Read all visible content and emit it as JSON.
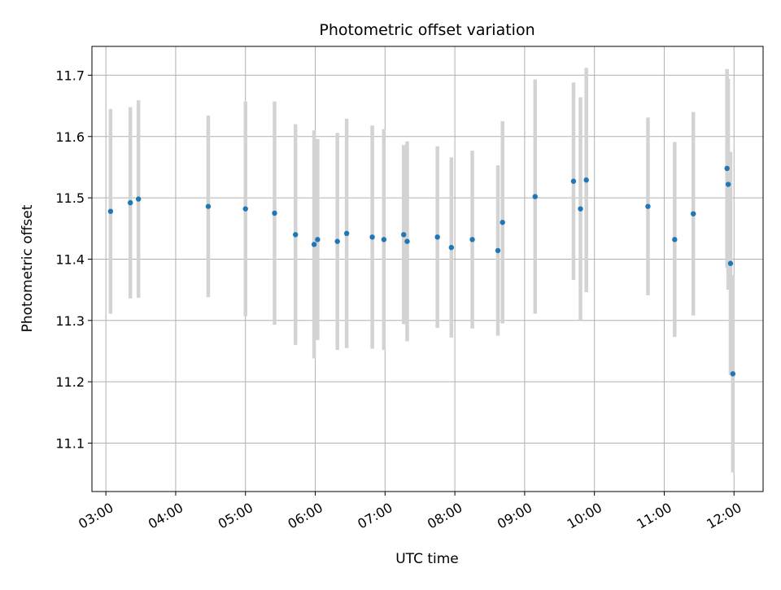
{
  "chart_data": {
    "type": "scatter",
    "title": "Photometric offset variation",
    "xlabel": "UTC time",
    "ylabel": "Photometric offset",
    "x_unit": "hours",
    "xlim": [
      "02:48",
      "12:25"
    ],
    "ylim": [
      11.021,
      11.747
    ],
    "xticks": [
      "03:00",
      "04:00",
      "05:00",
      "06:00",
      "07:00",
      "08:00",
      "09:00",
      "10:00",
      "11:00",
      "12:00"
    ],
    "yticks": [
      11.1,
      11.2,
      11.3,
      11.4,
      11.5,
      11.6,
      11.7
    ],
    "grid": true,
    "colors": {
      "point": "#1f77b4",
      "errorbar": "#d3d3d3",
      "grid": "#b0b0b0"
    },
    "series": [
      {
        "points": [
          {
            "x": "03:04",
            "y": 11.478,
            "err": 0.167
          },
          {
            "x": "03:21",
            "y": 11.492,
            "err": 0.156
          },
          {
            "x": "03:28",
            "y": 11.498,
            "err": 0.161
          },
          {
            "x": "04:28",
            "y": 11.486,
            "err": 0.148
          },
          {
            "x": "05:00",
            "y": 11.482,
            "err": 0.175
          },
          {
            "x": "05:25",
            "y": 11.475,
            "err": 0.182
          },
          {
            "x": "05:43",
            "y": 11.44,
            "err": 0.18
          },
          {
            "x": "05:59",
            "y": 11.424,
            "err": 0.186
          },
          {
            "x": "06:02",
            "y": 11.432,
            "err": 0.164
          },
          {
            "x": "06:19",
            "y": 11.429,
            "err": 0.177
          },
          {
            "x": "06:27",
            "y": 11.442,
            "err": 0.187
          },
          {
            "x": "06:49",
            "y": 11.436,
            "err": 0.182
          },
          {
            "x": "06:59",
            "y": 11.432,
            "err": 0.18
          },
          {
            "x": "07:16",
            "y": 11.44,
            "err": 0.146
          },
          {
            "x": "07:19",
            "y": 11.429,
            "err": 0.163
          },
          {
            "x": "07:45",
            "y": 11.436,
            "err": 0.148
          },
          {
            "x": "07:57",
            "y": 11.419,
            "err": 0.147
          },
          {
            "x": "08:15",
            "y": 11.432,
            "err": 0.145
          },
          {
            "x": "08:37",
            "y": 11.414,
            "err": 0.139
          },
          {
            "x": "08:41",
            "y": 11.46,
            "err": 0.165
          },
          {
            "x": "09:09",
            "y": 11.502,
            "err": 0.191
          },
          {
            "x": "09:42",
            "y": 11.527,
            "err": 0.161
          },
          {
            "x": "09:48",
            "y": 11.482,
            "err": 0.182
          },
          {
            "x": "09:53",
            "y": 11.529,
            "err": 0.183
          },
          {
            "x": "10:46",
            "y": 11.486,
            "err": 0.145
          },
          {
            "x": "11:09",
            "y": 11.432,
            "err": 0.159
          },
          {
            "x": "11:25",
            "y": 11.474,
            "err": 0.166
          },
          {
            "x": "11:54",
            "y": 11.548,
            "err": 0.162
          },
          {
            "x": "11:55",
            "y": 11.522,
            "err": 0.172
          },
          {
            "x": "11:57",
            "y": 11.393,
            "err": 0.182
          },
          {
            "x": "11:59",
            "y": 11.213,
            "err": 0.161
          }
        ]
      }
    ]
  }
}
